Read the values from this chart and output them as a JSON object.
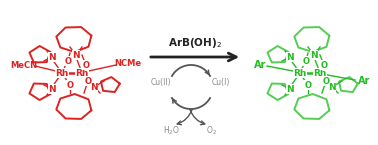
{
  "bg_color": "#ffffff",
  "red_color": "#dd2222",
  "green_color": "#22bb22",
  "green_light": "#55cc55",
  "dark_color": "#222222",
  "gray_color": "#888888",
  "arrow_color": "#555555",
  "reaction_arrow_label": "ArB(OH)$_2$",
  "cu2_label": "Cu(II)",
  "cu1_label": "Cu(I)",
  "h2o_label": "H$_2$O",
  "o2_label": "O$_2$",
  "figsize": [
    3.78,
    1.45
  ],
  "dpi": 100
}
